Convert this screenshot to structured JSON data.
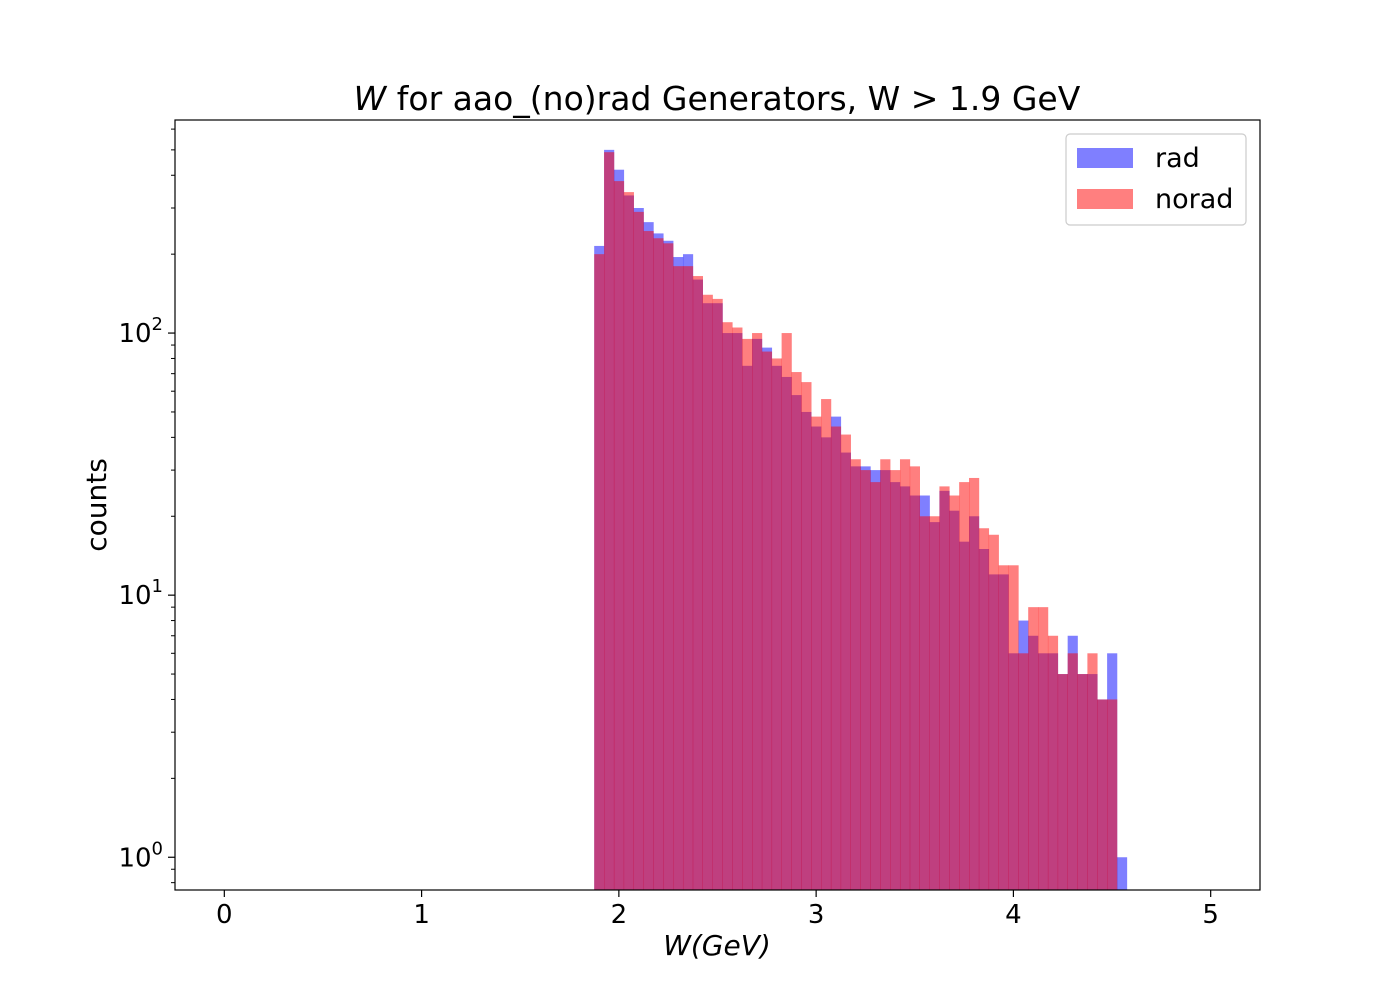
{
  "chart_data": {
    "type": "bar",
    "title_var": "W",
    "title_rest": " for aao_(no)rad Generators, W > 1.9 GeV",
    "xlabel": "W(GeV)",
    "ylabel": "counts",
    "xlim": [
      -0.25,
      5.25
    ],
    "ylim": [
      0.75,
      650
    ],
    "yscale": "log",
    "grid": false,
    "legend_position": "top-right",
    "x_ticks": [
      "0",
      "1",
      "2",
      "3",
      "4",
      "5"
    ],
    "y_ticks": [
      {
        "base": "10",
        "exp": "0"
      },
      {
        "base": "10",
        "exp": "1"
      },
      {
        "base": "10",
        "exp": "2"
      }
    ],
    "bin_start": 1.875,
    "bin_width": 0.05,
    "series": [
      {
        "name": "rad",
        "color": "#0000ff",
        "alpha": 0.5,
        "values": [
          215,
          500,
          420,
          335,
          300,
          265,
          240,
          225,
          195,
          200,
          160,
          130,
          130,
          100,
          100,
          75,
          95,
          88,
          75,
          68,
          58,
          50,
          44,
          40,
          48,
          35,
          31,
          31,
          30,
          30,
          27,
          26,
          24,
          24,
          19,
          25,
          21,
          16,
          20,
          15,
          12,
          12,
          6,
          8,
          7,
          6,
          6,
          5.0,
          7,
          5,
          5.0,
          4,
          6,
          1
        ]
      },
      {
        "name": "norad",
        "color": "#ff0000",
        "alpha": 0.5,
        "values": [
          200,
          490,
          380,
          345,
          290,
          245,
          230,
          220,
          180,
          180,
          165,
          140,
          135,
          110,
          105,
          95,
          100,
          85,
          80,
          100,
          71,
          65,
          48,
          56,
          44,
          41,
          33,
          30,
          27,
          33,
          30,
          33,
          31,
          20,
          20,
          26,
          24,
          27,
          28,
          18,
          17,
          13,
          13,
          6,
          9,
          9,
          7,
          5,
          6,
          5,
          6,
          4,
          4,
          0
        ]
      }
    ]
  }
}
